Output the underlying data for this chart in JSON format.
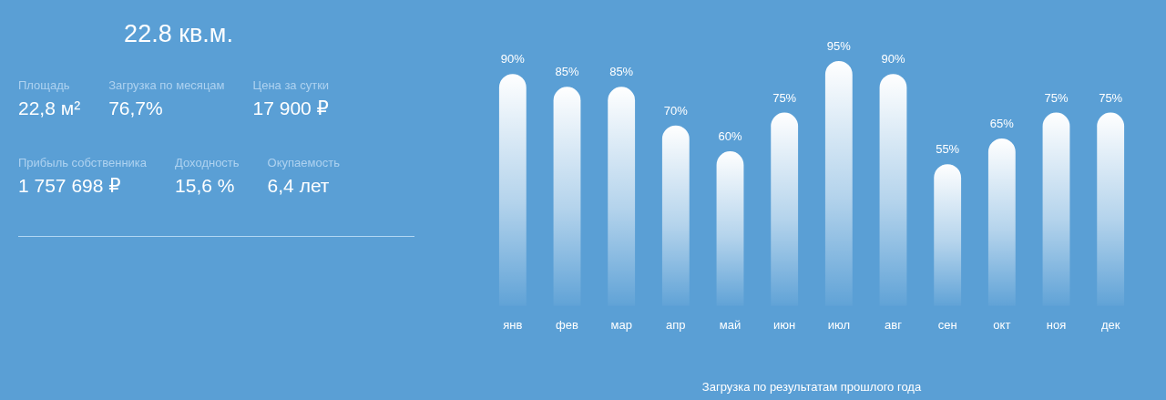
{
  "chart_data": [
    {
      "type": "other",
      "title": "22.8 кв.м.",
      "annotations": [
        "Площадь",
        "22,8 м²",
        "Загрузка по месяцам",
        "76,7%",
        "Цена за сутки",
        "17 900 ₽",
        "Прибыль собственника",
        "1 757 698 ₽",
        "Доходность",
        "15,6 %",
        "Окупаемость",
        "6,4 лет"
      ]
    },
    {
      "type": "bar",
      "categories": [
        "янв",
        "фев",
        "мар",
        "апр",
        "май",
        "июн",
        "июл",
        "авг",
        "сен",
        "окт",
        "ноя",
        "дек"
      ],
      "values": [
        90,
        85,
        85,
        70,
        60,
        75,
        95,
        90,
        55,
        65,
        75,
        75
      ],
      "value_labels": [
        "90%",
        "85%",
        "85%",
        "70%",
        "60%",
        "75%",
        "95%",
        "90%",
        "55%",
        "65%",
        "75%",
        "75%"
      ],
      "color": "#ffffff",
      "xlabel": "Загрузка по результатам прошлого года"
    }
  ]
}
